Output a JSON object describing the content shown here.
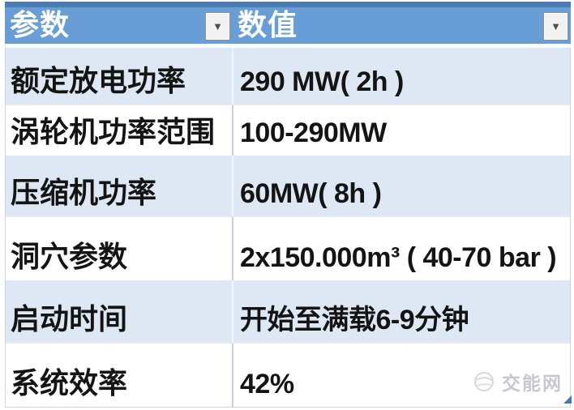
{
  "table": {
    "header": {
      "param_label": "参数",
      "value_label": "数值",
      "filter_icon": "▼"
    },
    "rows": [
      {
        "param": "额定放电功率",
        "value": "290 MW( 2h )"
      },
      {
        "param": "涡轮机功率范围",
        "value": "100-290MW"
      },
      {
        "param": "压缩机功率",
        "value": "60MW( 8h )"
      },
      {
        "param": "洞穴参数",
        "value": "2x150.000m³ ( 40-70 bar )"
      },
      {
        "param": "启动时间",
        "value": "开始至满载6-9分钟"
      },
      {
        "param": "系统效率",
        "value": "42%"
      }
    ]
  },
  "chart_data": {
    "type": "table",
    "columns": [
      "参数",
      "数值"
    ],
    "rows": [
      [
        "额定放电功率",
        "290 MW( 2h )"
      ],
      [
        "涡轮机功率范围",
        "100-290MW"
      ],
      [
        "压缩机功率",
        "60MW( 8h )"
      ],
      [
        "洞穴参数",
        "2x150.000m³ ( 40-70 bar )"
      ],
      [
        "启动时间",
        "开始至满载6-9分钟"
      ],
      [
        "系统效率",
        "42%"
      ]
    ]
  },
  "watermark": {
    "brand": "交能网",
    "logo_icon": "globe-swirl-icon"
  },
  "colors": {
    "top_border": "#4a7cb2",
    "header_bg": "#689dd5",
    "band_bg": "#dee8f4",
    "table_border": "#cfd4db",
    "divider_on_white": "#c9cfd8",
    "text": "#141414",
    "button_bg": "#f1f1f1",
    "button_border": "#8f8f8f",
    "button_arrow": "#4d4d4d",
    "watermark": "#c7c8cd",
    "handle": "#4a74ba"
  }
}
